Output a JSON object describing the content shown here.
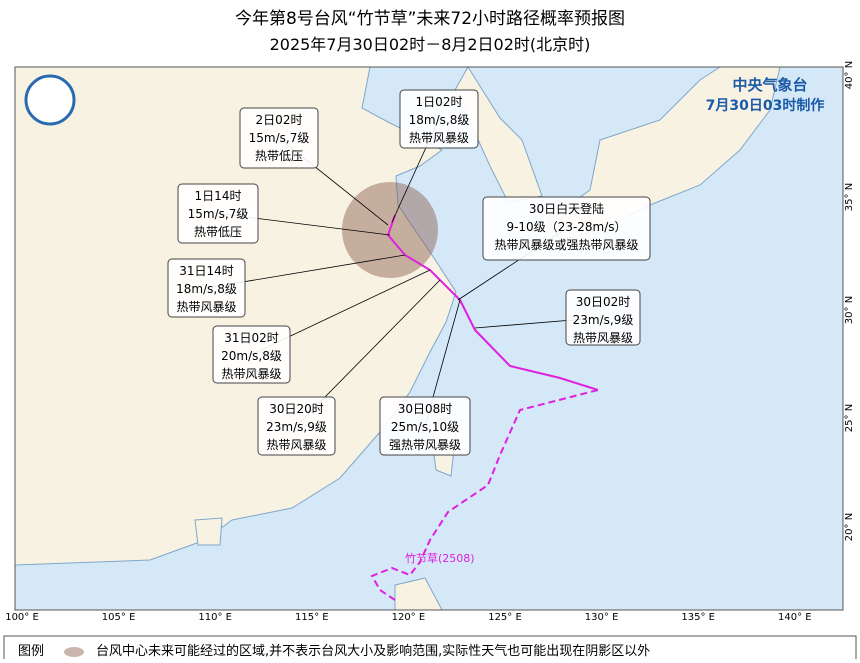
{
  "header": {
    "title": "今年第8号台风“竹节草”未来72小时路径概率预报图",
    "subtitle": "2025年7月30日02时－8月2日02时(北京时)"
  },
  "agency": {
    "name": "中央气象台",
    "issued": "7月30日03时制作"
  },
  "callouts": [
    {
      "lines": [
        "2日02时",
        "15m/s,7级",
        "热带低压"
      ]
    },
    {
      "lines": [
        "1日02时",
        "18m/s,8级",
        "热带风暴级"
      ]
    },
    {
      "lines": [
        "1日14时",
        "15m/s,7级",
        "热带低压"
      ]
    },
    {
      "lines": [
        "30日白天登陆",
        "9-10级（23-28m/s）",
        "热带风暴级或强热带风暴级"
      ]
    },
    {
      "lines": [
        "31日14时",
        "18m/s,8级",
        "热带风暴级"
      ]
    },
    {
      "lines": [
        "30日02时",
        "23m/s,9级",
        "热带风暴级"
      ]
    },
    {
      "lines": [
        "31日02时",
        "20m/s,8级",
        "热带风暴级"
      ]
    },
    {
      "lines": [
        "30日20时",
        "23m/s,9级",
        "热带风暴级"
      ]
    },
    {
      "lines": [
        "30日08时",
        "25m/s,10级",
        "强热带风暴级"
      ]
    }
  ],
  "lon_labels": [
    "100° E",
    "105° E",
    "110° E",
    "115° E",
    "120° E",
    "125° E",
    "130° E",
    "135° E",
    "140° E"
  ],
  "lat_labels": [
    "20° N",
    "25° N",
    "30° N",
    "35° N",
    "40° N"
  ],
  "track_label": "竹节草(2508)",
  "legend": {
    "label": "图例",
    "text": "台风中心未来可能经过的区域,并不表示台风大小及影响范围,实际性天气也可能出现在阴影区以外"
  }
}
